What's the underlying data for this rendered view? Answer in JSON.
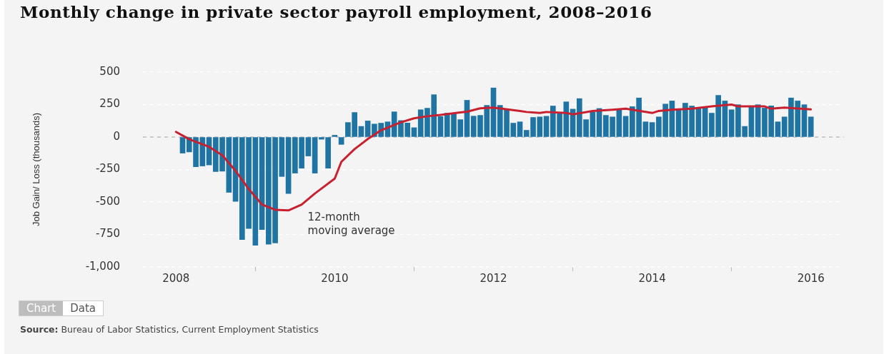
{
  "chart_data": {
    "type": "bar",
    "title": "Monthly change in private sector payroll employment, 2008–2016",
    "ylabel": "Job Gain/ Loss (thousands)",
    "x": [
      "2008-02",
      "2008-03",
      "2008-04",
      "2008-05",
      "2008-06",
      "2008-07",
      "2008-08",
      "2008-09",
      "2008-10",
      "2008-11",
      "2008-12",
      "2009-01",
      "2009-02",
      "2009-03",
      "2009-04",
      "2009-05",
      "2009-06",
      "2009-07",
      "2009-08",
      "2009-09",
      "2009-10",
      "2009-11",
      "2009-12",
      "2010-01",
      "2010-02",
      "2010-03",
      "2010-04",
      "2010-05",
      "2010-06",
      "2010-07",
      "2010-08",
      "2010-09",
      "2010-10",
      "2010-11",
      "2010-12",
      "2011-01",
      "2011-02",
      "2011-03",
      "2011-04",
      "2011-05",
      "2011-06",
      "2011-07",
      "2011-08",
      "2011-09",
      "2011-10",
      "2011-11",
      "2011-12",
      "2012-01",
      "2012-02",
      "2012-03",
      "2012-04",
      "2012-05",
      "2012-06",
      "2012-07",
      "2012-08",
      "2012-09",
      "2012-10",
      "2012-11",
      "2012-12",
      "2013-01",
      "2013-02",
      "2013-03",
      "2013-04",
      "2013-05",
      "2013-06",
      "2013-07",
      "2013-08",
      "2013-09",
      "2013-10",
      "2013-11",
      "2013-12",
      "2014-01",
      "2014-02",
      "2014-03",
      "2014-04",
      "2014-05",
      "2014-06",
      "2014-07",
      "2014-08",
      "2014-09",
      "2014-10",
      "2014-11",
      "2014-12",
      "2015-01",
      "2015-02",
      "2015-03",
      "2015-04",
      "2015-05",
      "2015-06",
      "2015-07",
      "2015-08",
      "2015-09",
      "2015-10",
      "2015-11",
      "2015-12",
      "2016-01"
    ],
    "series": [
      {
        "color": "#1f74a4",
        "values": [
          -124,
          -115,
          -229,
          -223,
          -215,
          -266,
          -263,
          -426,
          -495,
          -790,
          -704,
          -833,
          -713,
          -825,
          -816,
          -304,
          -435,
          -278,
          -240,
          -146,
          -278,
          -17,
          -240,
          14,
          -57,
          112,
          189,
          82,
          124,
          100,
          107,
          117,
          194,
          127,
          108,
          72,
          210,
          222,
          326,
          158,
          184,
          184,
          134,
          283,
          161,
          167,
          244,
          378,
          244,
          210,
          107,
          117,
          52,
          151,
          155,
          160,
          239,
          186,
          271,
          215,
          296,
          134,
          192,
          220,
          167,
          155,
          210,
          160,
          234,
          301,
          117,
          112,
          155,
          254,
          278,
          210,
          261,
          239,
          227,
          232,
          184,
          321,
          278,
          210,
          249,
          82,
          239,
          249,
          223,
          240,
          117,
          155,
          301,
          278,
          249,
          155
        ]
      },
      {
        "type": "line",
        "color": "#c8202f",
        "x": [
          "2008-01",
          "2008-03",
          "2008-06",
          "2008-08",
          "2008-10",
          "2008-12",
          "2009-02",
          "2009-04",
          "2009-06",
          "2009-08",
          "2009-10",
          "2010-01",
          "2010-02",
          "2010-04",
          "2010-06",
          "2010-08",
          "2010-11",
          "2011-01",
          "2011-03",
          "2011-05",
          "2011-08",
          "2011-09",
          "2011-11",
          "2012-01",
          "2012-05",
          "2012-06",
          "2012-08",
          "2012-09",
          "2012-12",
          "2013-01",
          "2013-04",
          "2013-07",
          "2013-09",
          "2014-01",
          "2014-02",
          "2014-04",
          "2014-07",
          "2014-10",
          "2015-01",
          "2015-02",
          "2015-06",
          "2015-07",
          "2015-09",
          "2016-01"
        ],
        "values": [
          40,
          -17,
          -75,
          -140,
          -260,
          -400,
          -520,
          -560,
          -565,
          -520,
          -435,
          -320,
          -191,
          -93,
          -15,
          52,
          113,
          144,
          160,
          170,
          190,
          195,
          221,
          227,
          201,
          193,
          185,
          193,
          185,
          175,
          201,
          210,
          218,
          185,
          201,
          210,
          218,
          236,
          250,
          236,
          236,
          218,
          227,
          213
        ]
      }
    ],
    "xlim": [
      "2007-08",
      "2016-06"
    ],
    "xticks": [
      "2008",
      "2010",
      "2012",
      "2014",
      "2016"
    ],
    "ylim": [
      -1000,
      500
    ],
    "yticks": [
      {
        "value": -1000,
        "label": "-1,000"
      },
      -750,
      -500,
      -250,
      0,
      250,
      500
    ],
    "grid": "y",
    "legend": false,
    "ref_lines": [
      {
        "axis": "y",
        "value": 0,
        "color": "#999999",
        "line_style": "dashed"
      }
    ],
    "annotations": [
      "12-month\nmoving average",
      "Chart",
      "Data",
      "Source: Bureau of Labor Statistics, Current Employment Statistics"
    ]
  }
}
